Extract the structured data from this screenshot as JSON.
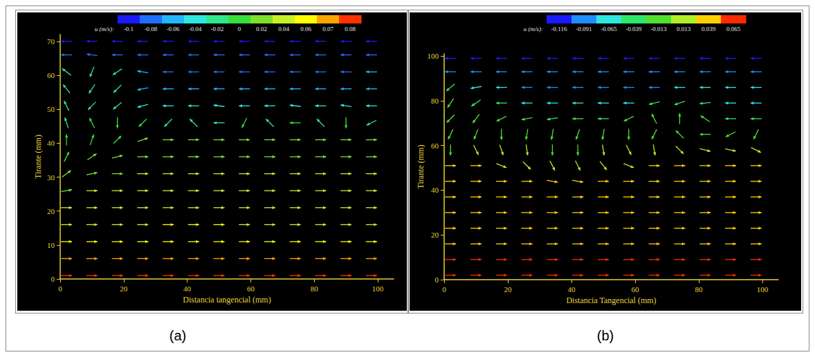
{
  "chart_data": [
    {
      "type": "quiver",
      "panel": "(a)",
      "x_label": "Distancia tangencial (mm)",
      "y_label": "Tirante (mm)",
      "xlim": [
        0,
        105
      ],
      "xticks": [
        0,
        20,
        40,
        60,
        80,
        100
      ],
      "ylim": [
        0,
        72
      ],
      "yticks": [
        0,
        10,
        20,
        30,
        40,
        50,
        60,
        70
      ],
      "grid": false,
      "colorbar": {
        "label": "u (m/s):",
        "ticks": [
          -0.1,
          -0.08,
          -0.06,
          -0.04,
          -0.02,
          0,
          0.02,
          0.04,
          0.06,
          0.07,
          0.08
        ],
        "colors": [
          "#1a1aff",
          "#1f6fff",
          "#23b6ff",
          "#2ee8e0",
          "#2ee88a",
          "#36e03a",
          "#7ee02a",
          "#c8f02a",
          "#ffff00",
          "#ffa500",
          "#ff3300"
        ]
      },
      "x": [
        2,
        10,
        18,
        26,
        34,
        42,
        50,
        58,
        66,
        74,
        82,
        90,
        98
      ],
      "y": [
        1,
        6,
        11,
        16,
        21,
        26,
        31,
        36,
        41,
        46,
        51,
        56,
        61,
        66,
        70
      ],
      "u": [
        [
          0.08,
          0.08,
          0.08,
          0.08,
          0.08,
          0.08,
          0.08,
          0.08,
          0.08,
          0.08,
          0.08,
          0.08,
          0.08
        ],
        [
          0.07,
          0.07,
          0.07,
          0.07,
          0.07,
          0.075,
          0.075,
          0.07,
          0.07,
          0.07,
          0.07,
          0.07,
          0.07
        ],
        [
          0.05,
          0.05,
          0.055,
          0.055,
          0.055,
          0.06,
          0.06,
          0.055,
          0.055,
          0.05,
          0.05,
          0.05,
          0.05
        ],
        [
          0.045,
          0.045,
          0.045,
          0.045,
          0.05,
          0.05,
          0.05,
          0.045,
          0.045,
          0.045,
          0.045,
          0.045,
          0.045
        ],
        [
          0.04,
          0.04,
          0.04,
          0.04,
          0.045,
          0.045,
          0.045,
          0.04,
          0.04,
          0.04,
          0.04,
          0.04,
          0.04
        ],
        [
          0.03,
          0.035,
          0.04,
          0.04,
          0.04,
          0.04,
          0.04,
          0.04,
          0.04,
          0.04,
          0.04,
          0.04,
          0.04
        ],
        [
          0.02,
          0.025,
          0.03,
          0.035,
          0.035,
          0.035,
          0.035,
          0.035,
          0.035,
          0.035,
          0.035,
          0.035,
          0.035
        ],
        [
          0.01,
          0.015,
          0.02,
          0.025,
          0.03,
          0.03,
          0.03,
          0.03,
          0.03,
          0.03,
          0.03,
          0.03,
          0.03
        ],
        [
          0.0,
          0.005,
          0.01,
          0.015,
          0.02,
          0.02,
          0.02,
          0.02,
          0.015,
          0.015,
          0.02,
          0.02,
          0.015
        ],
        [
          -0.01,
          -0.005,
          0.0,
          -0.005,
          -0.01,
          -0.01,
          -0.01,
          -0.005,
          -0.01,
          -0.005,
          -0.01,
          0.0,
          -0.01
        ],
        [
          -0.015,
          -0.02,
          -0.03,
          -0.035,
          -0.04,
          -0.04,
          -0.04,
          -0.04,
          -0.035,
          -0.04,
          -0.04,
          -0.035,
          -0.04
        ],
        [
          -0.02,
          -0.02,
          -0.03,
          -0.05,
          -0.06,
          -0.06,
          -0.065,
          -0.065,
          -0.065,
          -0.06,
          -0.06,
          -0.055,
          -0.055
        ],
        [
          -0.02,
          -0.01,
          -0.03,
          -0.06,
          -0.075,
          -0.08,
          -0.08,
          -0.08,
          -0.08,
          -0.075,
          -0.07,
          -0.07,
          -0.065
        ],
        [
          -0.08,
          -0.07,
          -0.08,
          -0.085,
          -0.09,
          -0.09,
          -0.09,
          -0.09,
          -0.09,
          -0.09,
          -0.085,
          -0.085,
          -0.08
        ],
        [
          -0.095,
          -0.095,
          -0.1,
          -0.1,
          -0.1,
          -0.1,
          -0.1,
          -0.1,
          -0.1,
          -0.1,
          -0.1,
          -0.095,
          -0.095
        ]
      ],
      "v": [
        [
          0,
          0,
          0,
          0,
          0,
          0,
          0,
          0,
          0,
          0,
          0,
          0,
          0
        ],
        [
          0,
          0,
          0,
          0,
          0,
          0,
          0,
          0,
          0,
          0,
          0,
          0,
          0
        ],
        [
          0,
          0,
          0,
          0,
          0,
          0,
          0,
          0,
          0,
          0,
          0,
          0,
          0
        ],
        [
          0,
          0,
          0,
          0,
          0,
          0,
          0,
          0,
          0,
          0,
          0,
          0,
          0
        ],
        [
          0,
          0,
          0,
          0,
          0,
          0,
          0,
          0,
          0,
          0,
          0,
          0,
          0
        ],
        [
          0.005,
          0,
          0,
          0,
          0,
          0,
          0,
          0,
          0,
          0,
          0,
          0,
          0
        ],
        [
          0.015,
          0.005,
          0,
          0,
          0,
          0,
          0,
          0,
          0,
          0,
          0,
          0,
          0
        ],
        [
          0.02,
          0.01,
          0.005,
          0,
          0,
          0,
          0,
          0,
          0,
          0,
          0,
          0,
          0
        ],
        [
          0.025,
          0.015,
          0.01,
          0.005,
          0,
          0,
          0,
          0,
          0,
          0,
          0,
          0,
          0
        ],
        [
          0.03,
          0.01,
          -0.01,
          -0.005,
          -0.01,
          0.01,
          0,
          -0.01,
          0.01,
          0,
          0.01,
          -0.01,
          -0.005
        ],
        [
          0.03,
          -0.02,
          -0.025,
          -0.01,
          0,
          0,
          0.005,
          0,
          0,
          0.005,
          0,
          0.005,
          0
        ],
        [
          0.025,
          -0.03,
          -0.03,
          -0.01,
          0,
          0,
          0,
          0,
          0,
          0,
          0,
          0,
          0
        ],
        [
          0.015,
          -0.025,
          -0.02,
          0.01,
          0,
          0,
          0,
          0,
          0,
          0,
          0,
          0,
          0
        ],
        [
          0,
          0.01,
          0,
          0,
          0,
          0,
          0,
          0,
          0,
          0,
          0,
          0,
          0
        ],
        [
          0,
          0,
          0,
          0,
          0,
          0,
          0,
          0,
          0,
          0,
          0,
          0,
          0
        ]
      ]
    },
    {
      "type": "quiver",
      "panel": "(b)",
      "x_label": "Distancia Tangencial (mm)",
      "y_label": "Tirante (mm)",
      "xlim": [
        0,
        105
      ],
      "xticks": [
        0,
        20,
        40,
        60,
        80,
        100
      ],
      "ylim": [
        0,
        101
      ],
      "yticks": [
        0,
        20,
        40,
        60,
        80,
        100
      ],
      "grid": false,
      "colorbar": {
        "label": "u (m/s):",
        "ticks": [
          -0.116,
          -0.091,
          -0.065,
          -0.039,
          -0.013,
          0.013,
          0.039,
          0.065
        ],
        "colors": [
          "#1a1aff",
          "#1f8fff",
          "#2ee8e0",
          "#2ee86a",
          "#50e030",
          "#b0f02a",
          "#ffd000",
          "#ff2a00"
        ]
      },
      "x": [
        2,
        10,
        18,
        26,
        34,
        42,
        50,
        58,
        66,
        74,
        82,
        90,
        98
      ],
      "y": [
        2,
        9,
        16,
        23,
        30,
        37,
        44,
        51,
        58,
        65,
        72,
        79,
        86,
        93,
        99
      ],
      "u": [
        [
          0.065,
          0.065,
          0.065,
          0.065,
          0.065,
          0.065,
          0.065,
          0.065,
          0.065,
          0.065,
          0.065,
          0.065,
          0.065
        ],
        [
          0.06,
          0.06,
          0.06,
          0.06,
          0.06,
          0.06,
          0.06,
          0.06,
          0.06,
          0.06,
          0.06,
          0.06,
          0.06
        ],
        [
          0.05,
          0.05,
          0.05,
          0.05,
          0.05,
          0.05,
          0.05,
          0.05,
          0.05,
          0.05,
          0.05,
          0.05,
          0.05
        ],
        [
          0.045,
          0.045,
          0.045,
          0.045,
          0.045,
          0.045,
          0.045,
          0.045,
          0.045,
          0.045,
          0.045,
          0.045,
          0.045
        ],
        [
          0.04,
          0.04,
          0.04,
          0.04,
          0.04,
          0.04,
          0.04,
          0.04,
          0.04,
          0.04,
          0.04,
          0.04,
          0.04
        ],
        [
          0.04,
          0.04,
          0.04,
          0.04,
          0.04,
          0.04,
          0.04,
          0.04,
          0.04,
          0.04,
          0.04,
          0.04,
          0.04
        ],
        [
          0.035,
          0.035,
          0.035,
          0.035,
          0.03,
          0.03,
          0.03,
          0.035,
          0.035,
          0.035,
          0.035,
          0.035,
          0.035
        ],
        [
          0.03,
          0.03,
          0.025,
          0.02,
          0.015,
          0.015,
          0.02,
          0.025,
          0.03,
          0.03,
          0.03,
          0.03,
          0.03
        ],
        [
          0.0,
          0.01,
          0.01,
          0.005,
          0.0,
          0.0,
          0.005,
          0.01,
          0.005,
          0.01,
          0.02,
          0.025,
          0.02
        ],
        [
          -0.01,
          -0.01,
          0.0,
          -0.005,
          -0.005,
          -0.01,
          -0.005,
          0.0,
          -0.01,
          -0.01,
          -0.005,
          -0.01,
          -0.005
        ],
        [
          -0.02,
          -0.015,
          -0.02,
          -0.025,
          -0.03,
          -0.025,
          -0.03,
          -0.02,
          -0.01,
          0.0,
          -0.015,
          -0.03,
          -0.03
        ],
        [
          -0.02,
          -0.03,
          -0.05,
          -0.06,
          -0.065,
          -0.065,
          -0.06,
          -0.06,
          -0.04,
          -0.03,
          -0.05,
          -0.06,
          -0.06
        ],
        [
          -0.03,
          -0.06,
          -0.075,
          -0.08,
          -0.08,
          -0.08,
          -0.08,
          -0.08,
          -0.08,
          -0.075,
          -0.075,
          -0.075,
          -0.075
        ],
        [
          -0.09,
          -0.1,
          -0.1,
          -0.1,
          -0.1,
          -0.1,
          -0.1,
          -0.1,
          -0.1,
          -0.1,
          -0.1,
          -0.1,
          -0.1
        ],
        [
          -0.115,
          -0.115,
          -0.115,
          -0.115,
          -0.115,
          -0.115,
          -0.115,
          -0.115,
          -0.115,
          -0.115,
          -0.115,
          -0.115,
          -0.115
        ]
      ],
      "v": [
        [
          0,
          0,
          0,
          0,
          0,
          0,
          0,
          0,
          0,
          0,
          0,
          0,
          0
        ],
        [
          0,
          0,
          0,
          0,
          0,
          0,
          0,
          0,
          0,
          0,
          0,
          0,
          0
        ],
        [
          0,
          0,
          0,
          0,
          0,
          0,
          0,
          0,
          0,
          0,
          0,
          0,
          0
        ],
        [
          0,
          0,
          0,
          0,
          0,
          0,
          0,
          0,
          0,
          0,
          0,
          0,
          0
        ],
        [
          0,
          0,
          0,
          0,
          0,
          0,
          0,
          0,
          0,
          0,
          0,
          0,
          0
        ],
        [
          0,
          0,
          0,
          0,
          0,
          0,
          0,
          0,
          0,
          0,
          0,
          0,
          0
        ],
        [
          0,
          0,
          0,
          0,
          -0.005,
          -0.005,
          0,
          0,
          0,
          0,
          0,
          0,
          0
        ],
        [
          0,
          0,
          -0.01,
          -0.02,
          -0.03,
          -0.03,
          -0.025,
          -0.01,
          0,
          0,
          0,
          0,
          0
        ],
        [
          -0.02,
          -0.02,
          -0.03,
          -0.035,
          -0.035,
          -0.035,
          -0.03,
          -0.02,
          -0.03,
          -0.01,
          -0.005,
          -0.005,
          -0.01
        ],
        [
          -0.02,
          -0.025,
          -0.03,
          -0.03,
          -0.03,
          -0.03,
          -0.03,
          -0.025,
          -0.02,
          0.01,
          0.0,
          -0.005,
          -0.01
        ],
        [
          -0.02,
          -0.02,
          -0.01,
          -0.005,
          -0.005,
          0,
          0,
          -0.01,
          0.02,
          0.025,
          0.01,
          0,
          0
        ],
        [
          -0.03,
          -0.02,
          0,
          0,
          0,
          0,
          0,
          0,
          -0.01,
          -0.01,
          -0.005,
          0,
          0
        ],
        [
          -0.025,
          -0.01,
          0,
          0,
          0,
          0,
          0,
          0,
          0,
          0,
          0,
          0,
          0
        ],
        [
          0,
          0,
          0,
          0,
          0,
          0,
          0,
          0,
          0,
          0,
          0,
          0,
          0
        ],
        [
          0,
          0,
          0,
          0,
          0,
          0,
          0,
          0,
          0,
          0,
          0,
          0,
          0
        ]
      ]
    }
  ]
}
